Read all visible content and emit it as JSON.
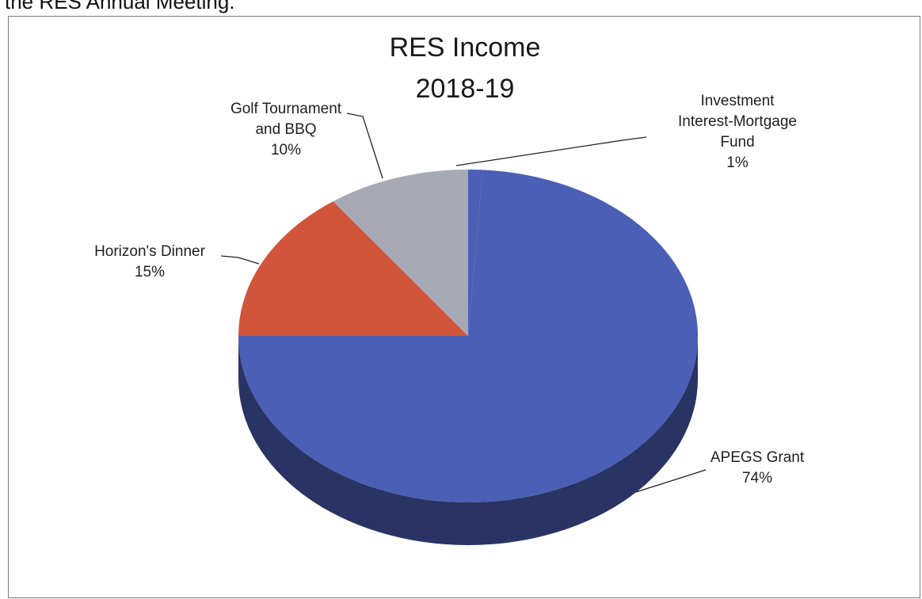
{
  "page_text": {
    "header_fragment": "the RES Annual Meeting."
  },
  "chart_data": {
    "type": "pie",
    "title": "RES Income\n2018-19",
    "title_lines": [
      "RES Income",
      "2018-19"
    ],
    "categories": [
      "APEGS Grant",
      "Horizon's Dinner",
      "Golf Tournament and BBQ",
      "Investment Interest-Mortgage Fund"
    ],
    "values": [
      74,
      15,
      10,
      1
    ],
    "value_labels": [
      "74%",
      "15%",
      "10%",
      "1%"
    ],
    "colors": [
      "#4a5fb5",
      "#d1553a",
      "#a7a9b4",
      "#4a5fb5"
    ],
    "label_lines": [
      [
        "APEGS Grant",
        "74%"
      ],
      [
        "Horizon's Dinner",
        "15%"
      ],
      [
        "Golf Tournament",
        "and BBQ",
        "10%"
      ],
      [
        "Investment",
        "Interest-Mortgage",
        "Fund",
        "1%"
      ]
    ],
    "three_d": true
  }
}
